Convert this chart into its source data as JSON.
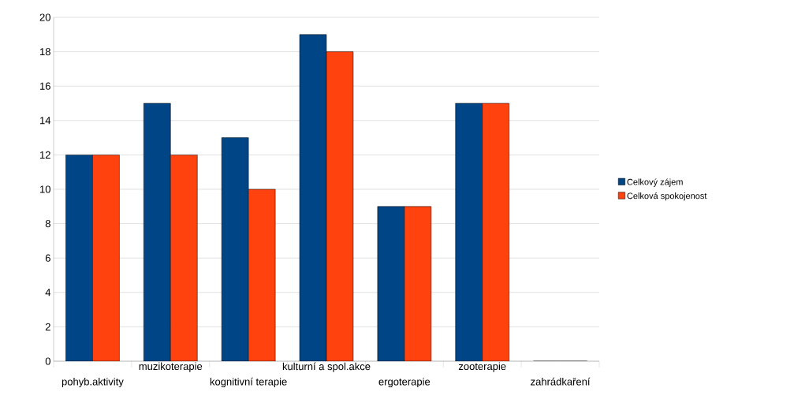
{
  "chart_data": {
    "type": "bar",
    "categories": [
      "pohyb.aktivity",
      "muzikoterapie",
      "kognitivní terapie",
      "kulturní a spol.akce",
      "ergoterapie",
      "zooterapie",
      "zahrádkaření"
    ],
    "series": [
      {
        "name": "Celkový zájem",
        "color": "#004586",
        "values": [
          12,
          15,
          13,
          19,
          9,
          15,
          0
        ]
      },
      {
        "name": "Celková spokojenost",
        "color": "#ff420e",
        "values": [
          12,
          12,
          10,
          18,
          9,
          15,
          0
        ]
      }
    ],
    "ylim": [
      0,
      20
    ],
    "yticks": [
      0,
      2,
      4,
      6,
      8,
      10,
      12,
      14,
      16,
      18,
      20
    ],
    "grid": "y",
    "legend": "right"
  }
}
